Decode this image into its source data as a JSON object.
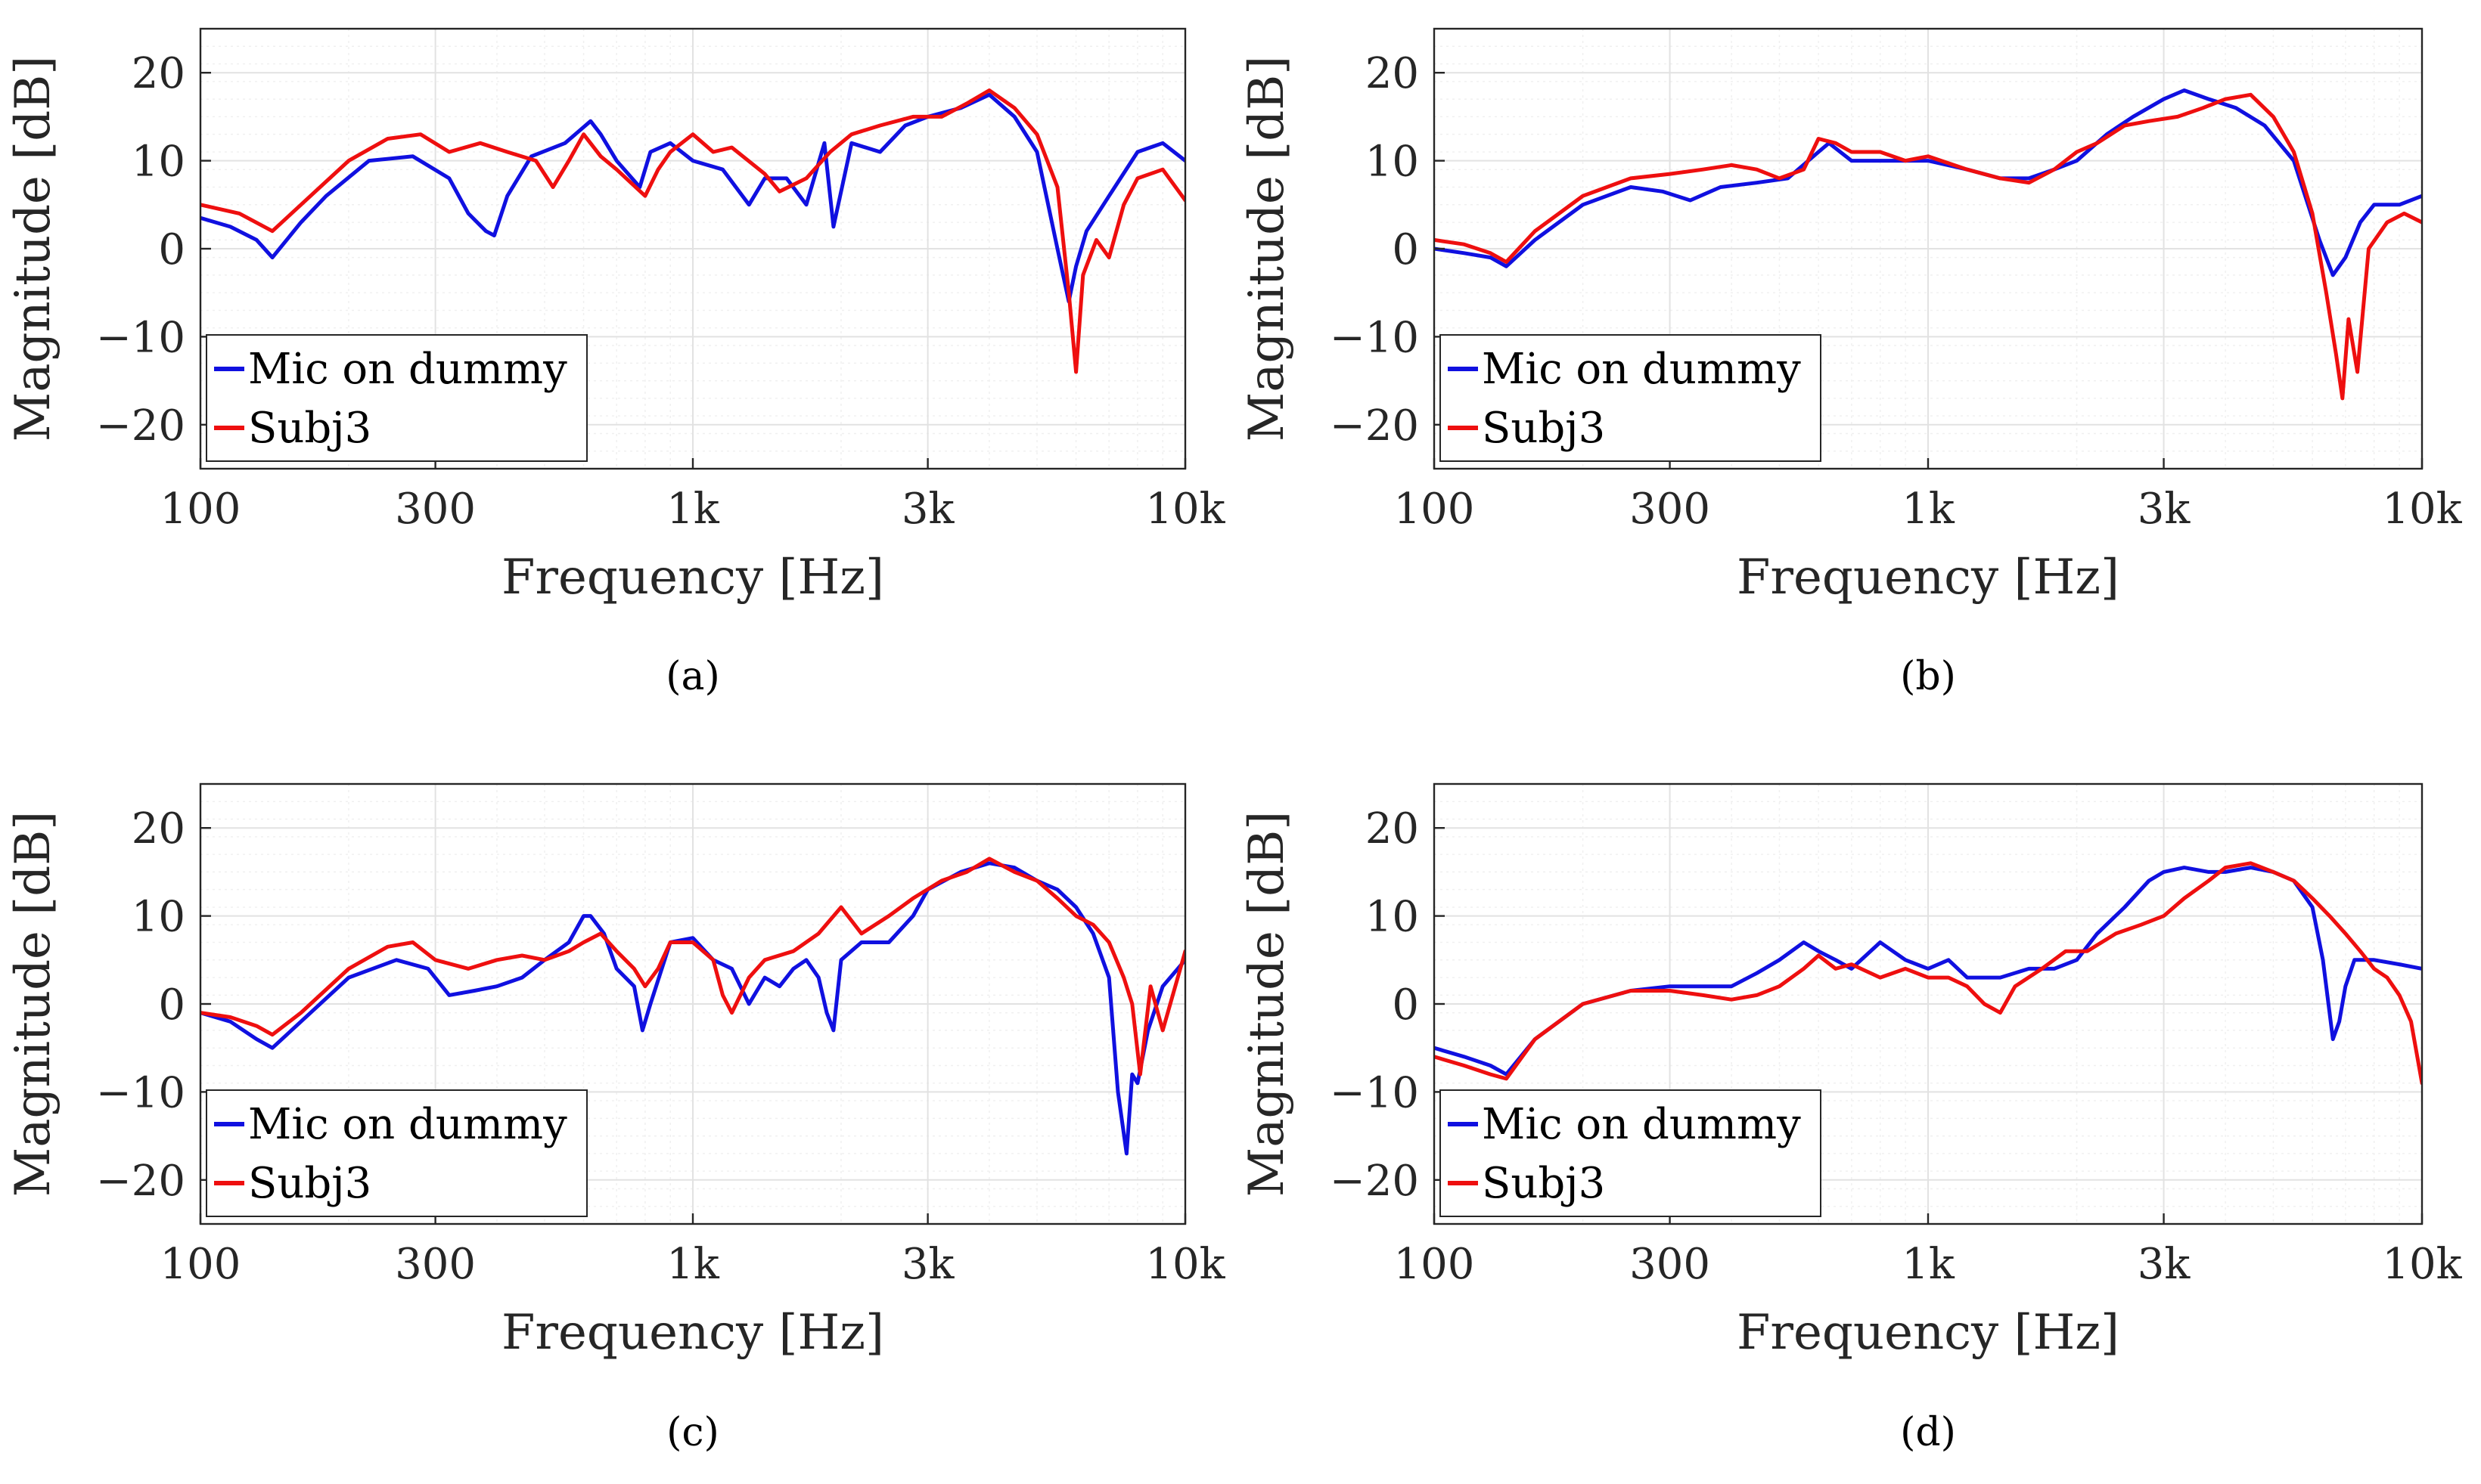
{
  "chart_data": [
    {
      "type": "line",
      "panel": "a",
      "caption": "(a)",
      "xlabel": "Frequency [Hz]",
      "ylabel": "Magnitude [dB]",
      "xscale": "log",
      "xlim": [
        100,
        10000
      ],
      "ylim": [
        -25,
        25
      ],
      "xticks": [
        100,
        300,
        1000,
        3000,
        10000
      ],
      "xtick_labels": [
        "100",
        "300",
        "1k",
        "3k",
        "10k"
      ],
      "yticks": [
        20,
        10,
        0,
        -10,
        -20
      ],
      "ytick_labels": [
        "20",
        "10",
        "0",
        "−10",
        "−20"
      ],
      "grid": true,
      "legend_position": "bottom-left",
      "series": [
        {
          "name": "Mic on dummy",
          "color": "#1010e0",
          "x": [
            100,
            115,
            130,
            140,
            160,
            180,
            220,
            270,
            320,
            350,
            380,
            395,
            420,
            470,
            550,
            620,
            650,
            700,
            780,
            820,
            900,
            1000,
            1150,
            1300,
            1400,
            1550,
            1700,
            1850,
            1930,
            2100,
            2400,
            2700,
            3000,
            3500,
            4000,
            4500,
            5000,
            5500,
            5800,
            6000,
            6300,
            7000,
            8000,
            9000,
            10000
          ],
          "y": [
            3.5,
            2.5,
            1,
            -1,
            3,
            6,
            10,
            10.5,
            8,
            4,
            2,
            1.5,
            6,
            10.5,
            12,
            14.5,
            13,
            10,
            7,
            11,
            12,
            10,
            9,
            5,
            8,
            8,
            5,
            12,
            2.5,
            12,
            11,
            14,
            15,
            16,
            17.5,
            15,
            11,
            0,
            -6,
            -2,
            2,
            6,
            11,
            12,
            10
          ]
        },
        {
          "name": "Subj3",
          "color": "#ee0f0f",
          "x": [
            100,
            120,
            140,
            160,
            200,
            240,
            280,
            320,
            370,
            420,
            480,
            520,
            560,
            600,
            650,
            700,
            800,
            850,
            900,
            1000,
            1100,
            1200,
            1400,
            1500,
            1700,
            1900,
            2100,
            2400,
            2800,
            3200,
            3600,
            4000,
            4500,
            5000,
            5500,
            5800,
            6000,
            6200,
            6600,
            7000,
            7500,
            8000,
            9000,
            10000
          ],
          "y": [
            5,
            4,
            2,
            5,
            10,
            12.5,
            13,
            11,
            12,
            11,
            10,
            7,
            10,
            13,
            10.5,
            9,
            6,
            9,
            11,
            13,
            11,
            11.5,
            8.5,
            6.5,
            8,
            11,
            13,
            14,
            15,
            15,
            16.5,
            18,
            16,
            13,
            7,
            -5,
            -14,
            -3,
            1,
            -1,
            5,
            8,
            9,
            5.5
          ]
        }
      ]
    },
    {
      "type": "line",
      "panel": "b",
      "caption": "(b)",
      "xlabel": "Frequency [Hz]",
      "ylabel": "Magnitude [dB]",
      "xscale": "log",
      "xlim": [
        100,
        10000
      ],
      "ylim": [
        -25,
        25
      ],
      "xticks": [
        100,
        300,
        1000,
        3000,
        10000
      ],
      "xtick_labels": [
        "100",
        "300",
        "1k",
        "3k",
        "10k"
      ],
      "yticks": [
        20,
        10,
        0,
        -10,
        -20
      ],
      "ytick_labels": [
        "20",
        "10",
        "0",
        "−10",
        "−20"
      ],
      "grid": true,
      "legend_position": "bottom-left",
      "series": [
        {
          "name": "Mic on dummy",
          "color": "#1010e0",
          "x": [
            100,
            115,
            130,
            140,
            160,
            200,
            250,
            290,
            330,
            380,
            450,
            520,
            600,
            630,
            700,
            800,
            900,
            1000,
            1200,
            1400,
            1600,
            1800,
            2000,
            2300,
            2600,
            3000,
            3300,
            3700,
            4200,
            4800,
            5500,
            6200,
            6600,
            7000,
            7500,
            8000,
            9000,
            10000
          ],
          "y": [
            0,
            -0.5,
            -1,
            -2,
            1,
            5,
            7,
            6.5,
            5.5,
            7,
            7.5,
            8,
            11,
            12,
            10,
            10,
            10,
            10,
            9,
            8,
            8,
            9,
            10,
            13,
            15,
            17,
            18,
            17,
            16,
            14,
            10,
            1,
            -3,
            -1,
            3,
            5,
            5,
            6
          ]
        },
        {
          "name": "Subj3",
          "color": "#ee0f0f",
          "x": [
            100,
            115,
            130,
            140,
            160,
            200,
            250,
            300,
            350,
            400,
            450,
            500,
            560,
            600,
            650,
            700,
            800,
            900,
            1000,
            1200,
            1400,
            1600,
            1800,
            2000,
            2200,
            2500,
            2800,
            3200,
            3600,
            4000,
            4500,
            5000,
            5500,
            6000,
            6400,
            6700,
            6900,
            7100,
            7400,
            7800,
            8500,
            9200,
            10000
          ],
          "y": [
            1,
            0.5,
            -0.5,
            -1.5,
            2,
            6,
            8,
            8.5,
            9,
            9.5,
            9,
            8,
            9,
            12.5,
            12,
            11,
            11,
            10,
            10.5,
            9,
            8,
            7.5,
            9,
            11,
            12,
            14,
            14.5,
            15,
            16,
            17,
            17.5,
            15,
            11,
            4,
            -5,
            -12,
            -17,
            -8,
            -14,
            0,
            3,
            4,
            3
          ]
        }
      ]
    },
    {
      "type": "line",
      "panel": "c",
      "caption": "(c)",
      "xlabel": "Frequency [Hz]",
      "ylabel": "Magnitude [dB]",
      "xscale": "log",
      "xlim": [
        100,
        10000
      ],
      "ylim": [
        -25,
        25
      ],
      "xticks": [
        100,
        300,
        1000,
        3000,
        10000
      ],
      "xtick_labels": [
        "100",
        "300",
        "1k",
        "3k",
        "10k"
      ],
      "yticks": [
        20,
        10,
        0,
        -10,
        -20
      ],
      "ytick_labels": [
        "20",
        "10",
        "0",
        "−10",
        "−20"
      ],
      "grid": true,
      "legend_position": "bottom-left",
      "series": [
        {
          "name": "Mic on dummy",
          "color": "#1010e0",
          "x": [
            100,
            115,
            130,
            140,
            160,
            200,
            250,
            290,
            320,
            360,
            400,
            450,
            500,
            560,
            600,
            620,
            660,
            700,
            760,
            790,
            820,
            900,
            1000,
            1100,
            1200,
            1300,
            1400,
            1500,
            1600,
            1700,
            1800,
            1870,
            1930,
            2000,
            2200,
            2500,
            2800,
            3000,
            3500,
            4000,
            4500,
            5000,
            5500,
            6000,
            6500,
            7000,
            7300,
            7600,
            7800,
            8000,
            8400,
            9000,
            10000
          ],
          "y": [
            -1,
            -2,
            -4,
            -5,
            -2,
            3,
            5,
            4,
            1,
            1.5,
            2,
            3,
            5,
            7,
            10,
            10,
            8,
            4,
            2,
            -3,
            0,
            7,
            7.5,
            5,
            4,
            0,
            3,
            2,
            4,
            5,
            3,
            -1,
            -3,
            5,
            7,
            7,
            10,
            13,
            15,
            16,
            15.5,
            14,
            13,
            11,
            8,
            3,
            -10,
            -17,
            -8,
            -9,
            -3,
            2,
            5
          ]
        },
        {
          "name": "Subj3",
          "color": "#ee0f0f",
          "x": [
            100,
            115,
            130,
            140,
            160,
            200,
            240,
            270,
            300,
            350,
            400,
            450,
            500,
            560,
            600,
            650,
            700,
            760,
            800,
            850,
            900,
            1000,
            1100,
            1150,
            1200,
            1300,
            1400,
            1600,
            1800,
            2000,
            2200,
            2500,
            2800,
            3200,
            3600,
            4000,
            4500,
            5000,
            5500,
            6000,
            6500,
            7000,
            7500,
            7800,
            8100,
            8500,
            9000,
            10000
          ],
          "y": [
            -1,
            -1.5,
            -2.5,
            -3.5,
            -1,
            4,
            6.5,
            7,
            5,
            4,
            5,
            5.5,
            5,
            6,
            7,
            8,
            6,
            4,
            2,
            4,
            7,
            7,
            5,
            1,
            -1,
            3,
            5,
            6,
            8,
            11,
            8,
            10,
            12,
            14,
            15,
            16.5,
            15,
            14,
            12,
            10,
            9,
            7,
            3,
            0,
            -8,
            2,
            -3,
            6
          ]
        }
      ]
    },
    {
      "type": "line",
      "panel": "d",
      "caption": "(d)",
      "xlabel": "Frequency [Hz]",
      "ylabel": "Magnitude [dB]",
      "xscale": "log",
      "xlim": [
        100,
        10000
      ],
      "ylim": [
        -25,
        25
      ],
      "xticks": [
        100,
        300,
        1000,
        3000,
        10000
      ],
      "xtick_labels": [
        "100",
        "300",
        "1k",
        "3k",
        "10k"
      ],
      "yticks": [
        20,
        10,
        0,
        -10,
        -20
      ],
      "ytick_labels": [
        "20",
        "10",
        "0",
        "−10",
        "−20"
      ],
      "grid": true,
      "legend_position": "bottom-left",
      "series": [
        {
          "name": "Mic on dummy",
          "color": "#1010e0",
          "x": [
            100,
            115,
            130,
            140,
            160,
            200,
            250,
            300,
            350,
            400,
            450,
            500,
            560,
            600,
            650,
            700,
            800,
            900,
            1000,
            1100,
            1200,
            1400,
            1600,
            1800,
            2000,
            2200,
            2500,
            2800,
            3000,
            3300,
            3700,
            4000,
            4500,
            5000,
            5500,
            6000,
            6300,
            6600,
            6800,
            7000,
            7300,
            8000,
            9000,
            10000
          ],
          "y": [
            -5,
            -6,
            -7,
            -8,
            -4,
            0,
            1.5,
            2,
            2,
            2,
            3.5,
            5,
            7,
            6,
            5,
            4,
            7,
            5,
            4,
            5,
            3,
            3,
            4,
            4,
            5,
            8,
            11,
            14,
            15,
            15.5,
            15,
            15,
            15.5,
            15,
            14,
            11,
            5,
            -4,
            -2,
            2,
            5,
            5,
            4.5,
            4
          ]
        },
        {
          "name": "Subj3",
          "color": "#ee0f0f",
          "x": [
            100,
            115,
            130,
            140,
            160,
            200,
            250,
            300,
            350,
            400,
            450,
            500,
            560,
            600,
            650,
            700,
            800,
            900,
            1000,
            1100,
            1200,
            1300,
            1400,
            1500,
            1700,
            1900,
            2100,
            2400,
            2700,
            3000,
            3300,
            3700,
            4000,
            4500,
            5000,
            5500,
            6000,
            6500,
            7000,
            7500,
            8000,
            8500,
            9000,
            9500,
            10000
          ],
          "y": [
            -6,
            -7,
            -8,
            -8.5,
            -4,
            0,
            1.5,
            1.5,
            1,
            0.5,
            1,
            2,
            4,
            5.5,
            4,
            4.5,
            3,
            4,
            3,
            3,
            2,
            0,
            -1,
            2,
            4,
            6,
            6,
            8,
            9,
            10,
            12,
            14,
            15.5,
            16,
            15,
            14,
            12,
            10,
            8,
            6,
            4,
            3,
            1,
            -2,
            -9
          ]
        }
      ]
    }
  ]
}
